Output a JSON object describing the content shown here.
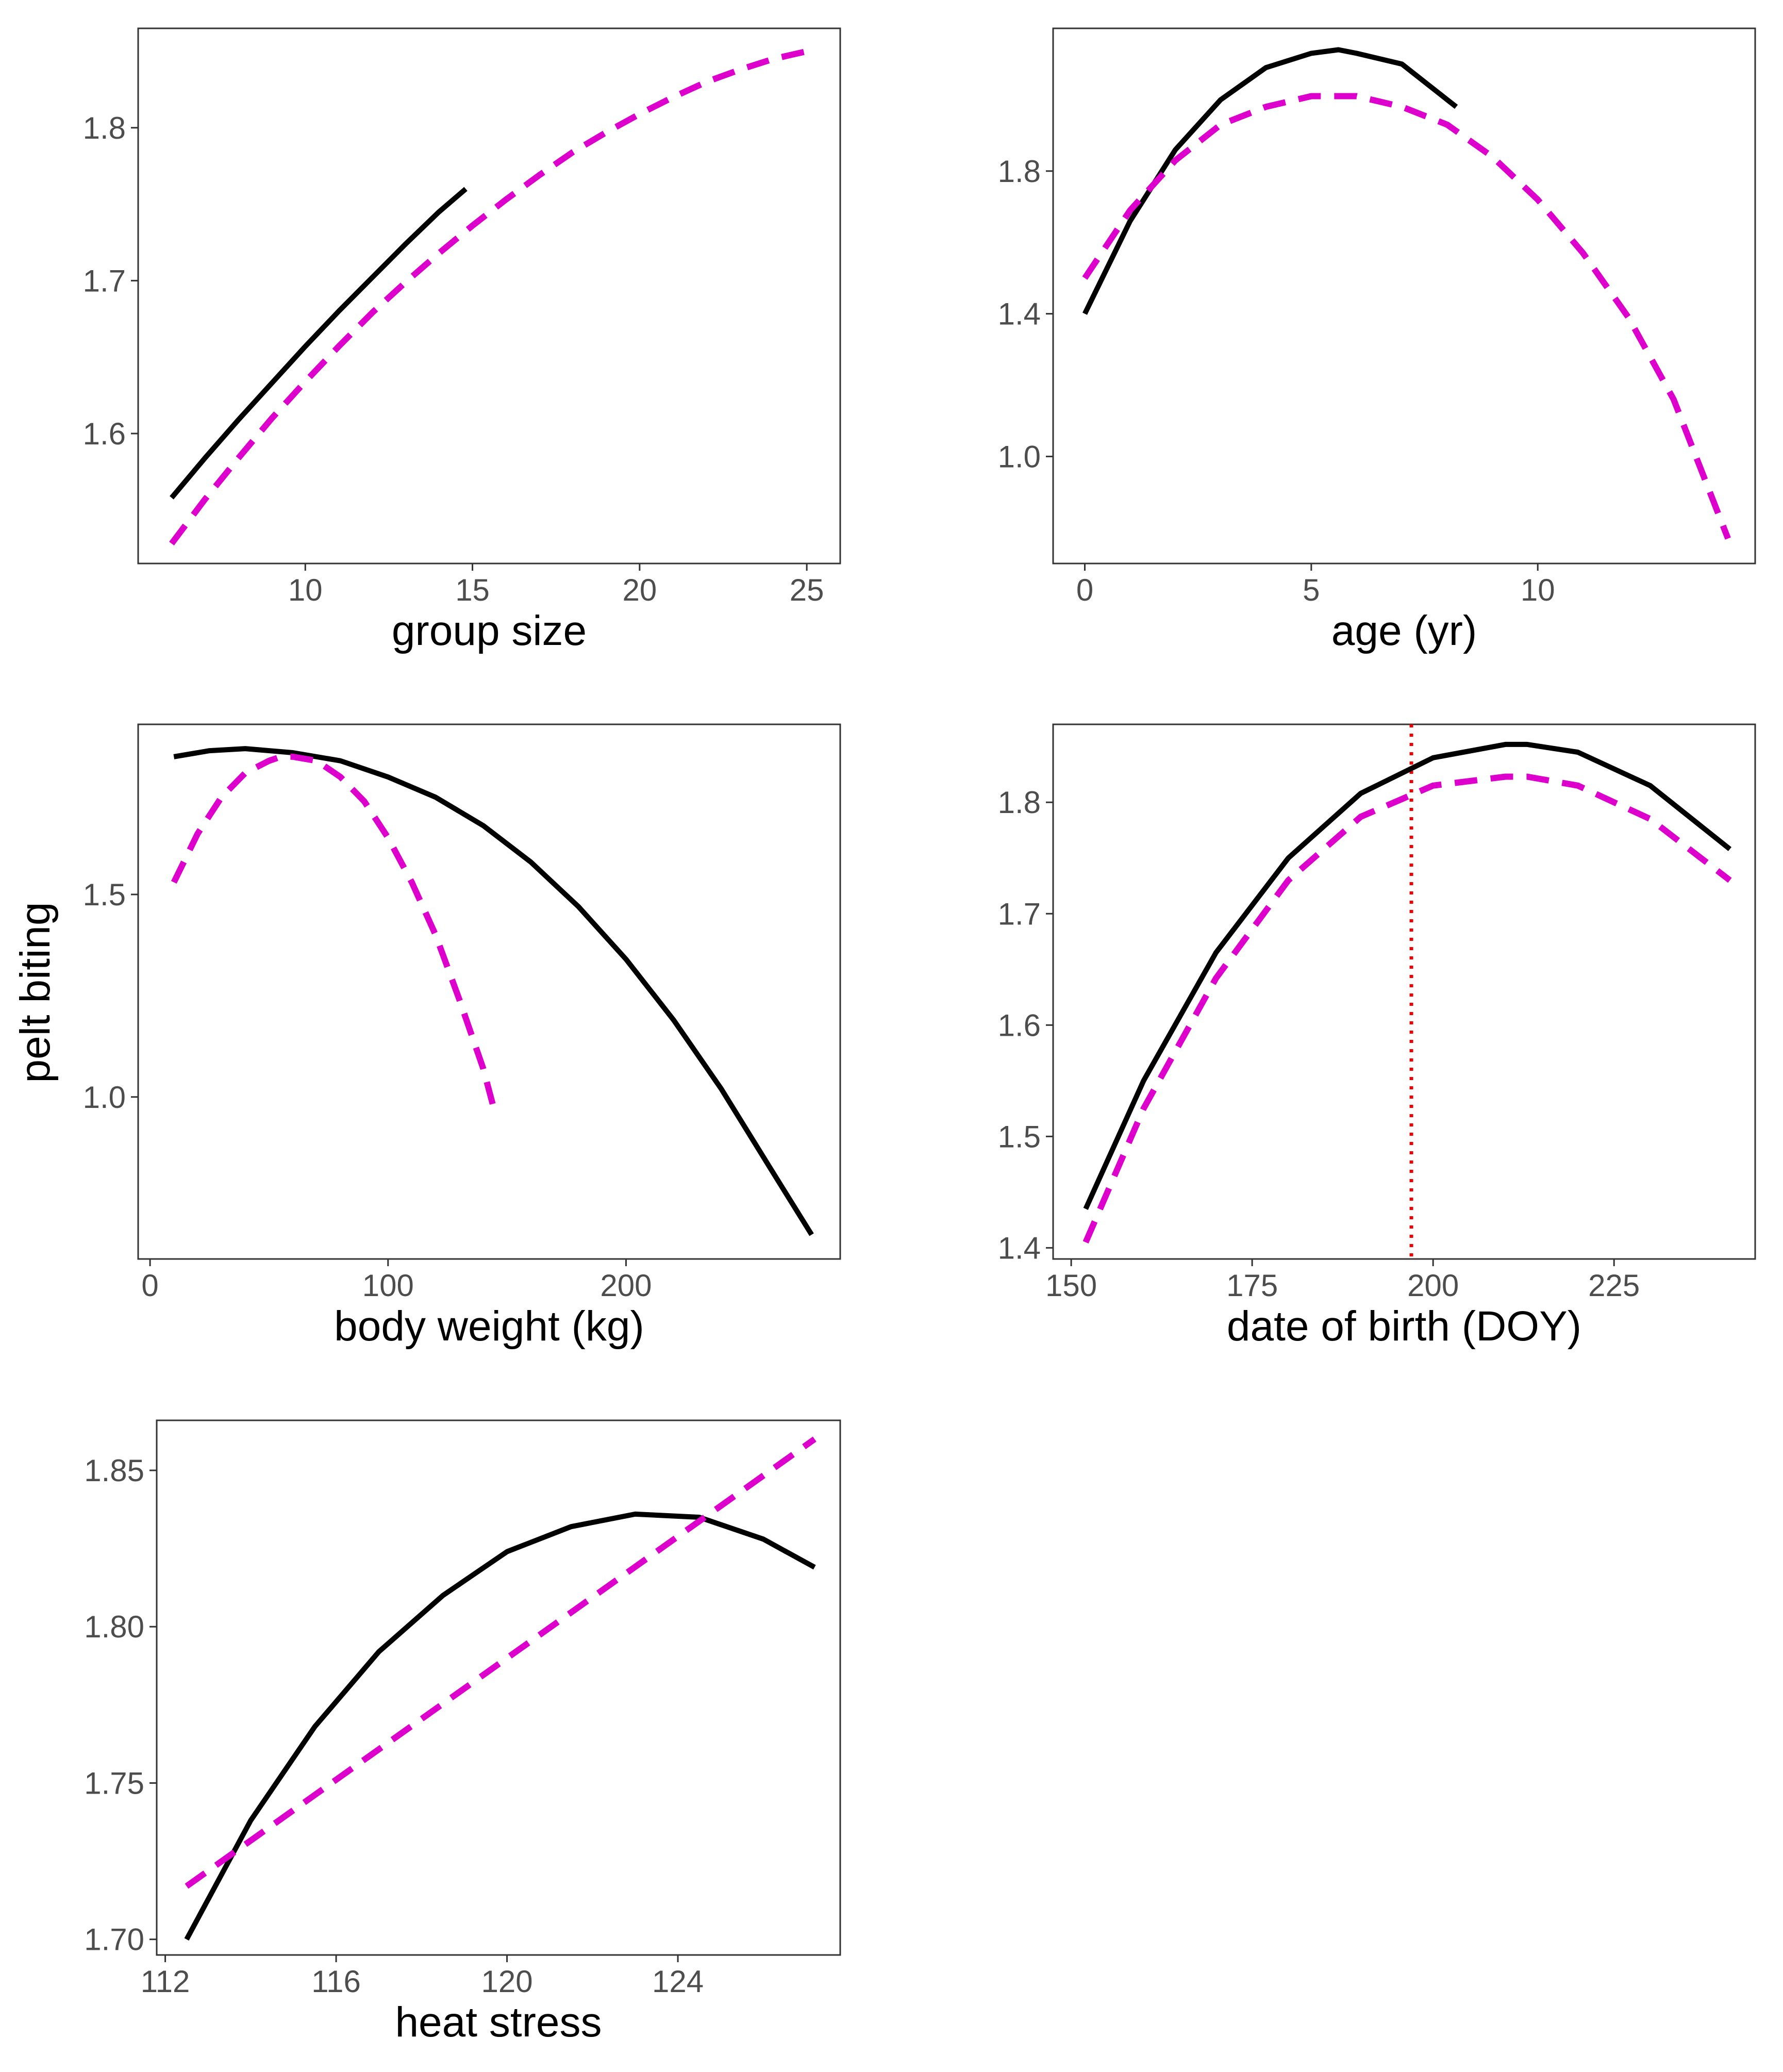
{
  "figure": {
    "y_axis_label": "pelt biting",
    "colors": {
      "solid": "#000000",
      "dashed": "#dd00cc",
      "vline": "#ee0000",
      "frame": "#333333",
      "tick_text": "#4d4d4d"
    }
  },
  "chart_data": [
    {
      "type": "line",
      "panel": "group-size",
      "xlabel": "group size",
      "xlim": [
        5,
        26
      ],
      "ylim": [
        1.515,
        1.865
      ],
      "xticks": [
        10,
        15,
        20,
        25
      ],
      "xtick_labels": [
        "10",
        "15",
        "20",
        "25"
      ],
      "yticks": [
        1.6,
        1.7,
        1.8
      ],
      "ytick_labels": [
        "1.6",
        "1.7",
        "1.8"
      ],
      "series": [
        {
          "name": "solid",
          "style": "solid",
          "x": [
            6,
            7,
            8,
            9,
            10,
            11,
            12,
            13,
            14,
            14.8
          ],
          "y": [
            1.558,
            1.584,
            1.609,
            1.633,
            1.657,
            1.68,
            1.702,
            1.724,
            1.745,
            1.76
          ]
        },
        {
          "name": "dashed",
          "style": "dashed",
          "x": [
            6,
            7,
            8,
            9,
            10,
            11,
            12,
            13,
            14,
            15,
            16,
            17,
            18,
            19,
            20,
            21,
            22,
            23,
            24,
            25
          ],
          "y": [
            1.528,
            1.557,
            1.584,
            1.61,
            1.634,
            1.657,
            1.679,
            1.699,
            1.718,
            1.736,
            1.753,
            1.769,
            1.784,
            1.797,
            1.809,
            1.82,
            1.83,
            1.838,
            1.845,
            1.85
          ]
        }
      ]
    },
    {
      "type": "line",
      "panel": "age",
      "xlabel": "age (yr)",
      "xlim": [
        -0.7,
        14.8
      ],
      "ylim": [
        0.7,
        2.2
      ],
      "xticks": [
        0,
        5,
        10
      ],
      "xtick_labels": [
        "0",
        "5",
        "10"
      ],
      "yticks": [
        1.0,
        1.4,
        1.8
      ],
      "ytick_labels": [
        "1.0",
        "1.4",
        "1.8"
      ],
      "series": [
        {
          "name": "solid",
          "style": "solid",
          "x": [
            0,
            1,
            2,
            3,
            4,
            5,
            5.6,
            6,
            7,
            8,
            8.2
          ],
          "y": [
            1.4,
            1.66,
            1.86,
            2.0,
            2.09,
            2.13,
            2.14,
            2.13,
            2.1,
            2.0,
            1.98
          ]
        },
        {
          "name": "dashed",
          "style": "dashed",
          "x": [
            0,
            1,
            2,
            3,
            4,
            5,
            5.5,
            6,
            7,
            8,
            9,
            10,
            11,
            12,
            13,
            14.2
          ],
          "y": [
            1.5,
            1.69,
            1.83,
            1.93,
            1.98,
            2.01,
            2.01,
            2.01,
            1.98,
            1.93,
            1.84,
            1.72,
            1.57,
            1.39,
            1.16,
            0.77
          ]
        }
      ]
    },
    {
      "type": "line",
      "panel": "body-weight",
      "xlabel": "body weight (kg)",
      "xlim": [
        -5,
        290
      ],
      "ylim": [
        0.6,
        1.92
      ],
      "xticks": [
        0,
        100,
        200
      ],
      "xtick_labels": [
        "0",
        "100",
        "200"
      ],
      "yticks": [
        1.0,
        1.5
      ],
      "ytick_labels": [
        "1.0",
        "1.5"
      ],
      "series": [
        {
          "name": "solid",
          "style": "solid",
          "x": [
            10,
            25,
            40,
            60,
            80,
            100,
            120,
            140,
            160,
            180,
            200,
            220,
            240,
            260,
            278
          ],
          "y": [
            1.84,
            1.855,
            1.86,
            1.85,
            1.83,
            1.79,
            1.74,
            1.67,
            1.58,
            1.47,
            1.34,
            1.19,
            1.02,
            0.83,
            0.66
          ]
        },
        {
          "name": "dashed",
          "style": "dashed",
          "x": [
            10,
            20,
            30,
            40,
            50,
            55,
            60,
            70,
            80,
            90,
            100,
            110,
            120,
            130,
            140,
            145
          ],
          "y": [
            1.53,
            1.65,
            1.74,
            1.8,
            1.83,
            1.84,
            1.84,
            1.83,
            1.79,
            1.73,
            1.64,
            1.53,
            1.4,
            1.24,
            1.07,
            0.96
          ]
        }
      ]
    },
    {
      "type": "line",
      "panel": "date-of-birth",
      "xlabel": "date of birth (DOY)",
      "xlim": [
        147.5,
        244.5
      ],
      "ylim": [
        1.39,
        1.87
      ],
      "xticks": [
        150,
        175,
        200,
        225
      ],
      "xtick_labels": [
        "150",
        "175",
        "200",
        "225"
      ],
      "yticks": [
        1.4,
        1.5,
        1.6,
        1.7,
        1.8
      ],
      "ytick_labels": [
        "1.4",
        "1.5",
        "1.6",
        "1.7",
        "1.8"
      ],
      "vline_x": 197,
      "series": [
        {
          "name": "solid",
          "style": "solid",
          "x": [
            152,
            160,
            170,
            180,
            190,
            200,
            210,
            213,
            220,
            230,
            241
          ],
          "y": [
            1.435,
            1.55,
            1.665,
            1.75,
            1.808,
            1.84,
            1.852,
            1.852,
            1.845,
            1.815,
            1.758
          ]
        },
        {
          "name": "dashed",
          "style": "dashed",
          "x": [
            152,
            160,
            170,
            180,
            190,
            200,
            210,
            213,
            220,
            230,
            241
          ],
          "y": [
            1.405,
            1.525,
            1.642,
            1.73,
            1.787,
            1.815,
            1.823,
            1.823,
            1.815,
            1.785,
            1.73
          ]
        }
      ]
    },
    {
      "type": "line",
      "panel": "heat-stress",
      "xlabel": "heat stress",
      "xlim": [
        111.8,
        127.8
      ],
      "ylim": [
        1.695,
        1.866
      ],
      "xticks": [
        112,
        116,
        120,
        124
      ],
      "xtick_labels": [
        "112",
        "116",
        "120",
        "124"
      ],
      "yticks": [
        1.7,
        1.75,
        1.8,
        1.85
      ],
      "ytick_labels": [
        "1.70",
        "1.75",
        "1.80",
        "1.85"
      ],
      "series": [
        {
          "name": "solid",
          "style": "solid",
          "x": [
            112.5,
            114,
            115.5,
            117,
            118.5,
            120,
            121.5,
            123,
            124.5,
            126,
            127.2
          ],
          "y": [
            1.7,
            1.738,
            1.768,
            1.792,
            1.81,
            1.824,
            1.832,
            1.836,
            1.835,
            1.828,
            1.819
          ]
        },
        {
          "name": "dashed",
          "style": "dashed",
          "x": [
            112.5,
            127.2
          ],
          "y": [
            1.717,
            1.86
          ]
        }
      ]
    }
  ]
}
